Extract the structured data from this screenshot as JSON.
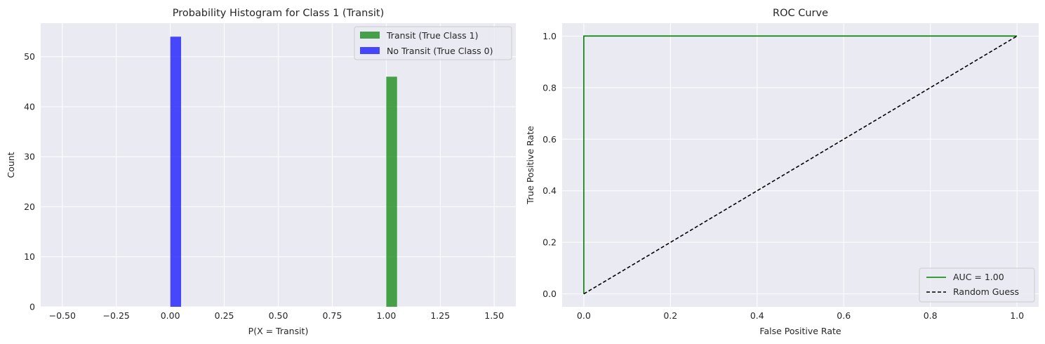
{
  "chart_data": [
    {
      "type": "bar",
      "title": "Probability Histogram for Class 1 (Transit)",
      "xlabel": "P(X = Transit)",
      "ylabel": "Count",
      "xlim": [
        -0.6,
        1.6
      ],
      "ylim": [
        0,
        56.7
      ],
      "xticks": [
        -0.5,
        -0.25,
        0.0,
        0.25,
        0.5,
        0.75,
        1.0,
        1.25,
        1.5
      ],
      "xtick_labels": [
        "−0.50",
        "−0.25",
        "0.00",
        "0.25",
        "0.50",
        "0.75",
        "1.00",
        "1.25",
        "1.50"
      ],
      "yticks": [
        0,
        10,
        20,
        30,
        40,
        50
      ],
      "ytick_labels": [
        "0",
        "10",
        "20",
        "30",
        "40",
        "50"
      ],
      "grid": true,
      "legend_position": "top-right",
      "series": [
        {
          "name": "Transit (True Class 1)",
          "color": "#008000",
          "bins": [
            {
              "x0": 1.0,
              "x1": 1.05,
              "count": 46
            }
          ]
        },
        {
          "name": "No Transit (True Class 0)",
          "color": "#0000ff",
          "bins": [
            {
              "x0": 0.0,
              "x1": 0.05,
              "count": 54
            }
          ]
        }
      ]
    },
    {
      "type": "line",
      "title": "ROC Curve",
      "xlabel": "False Positive Rate",
      "ylabel": "True Positive Rate",
      "xlim": [
        -0.05,
        1.05
      ],
      "ylim": [
        -0.05,
        1.05
      ],
      "xticks": [
        0.0,
        0.2,
        0.4,
        0.6,
        0.8,
        1.0
      ],
      "xtick_labels": [
        "0.0",
        "0.2",
        "0.4",
        "0.6",
        "0.8",
        "1.0"
      ],
      "yticks": [
        0.0,
        0.2,
        0.4,
        0.6,
        0.8,
        1.0
      ],
      "ytick_labels": [
        "0.0",
        "0.2",
        "0.4",
        "0.6",
        "0.8",
        "1.0"
      ],
      "grid": true,
      "legend_position": "bottom-right",
      "series": [
        {
          "name": "AUC = 1.00",
          "color": "#008000",
          "dash": "solid",
          "x": [
            0.0,
            0.0,
            1.0
          ],
          "y": [
            0.0,
            1.0,
            1.0
          ]
        },
        {
          "name": "Random Guess",
          "color": "#000000",
          "dash": "dashed",
          "x": [
            0.0,
            1.0
          ],
          "y": [
            0.0,
            1.0
          ]
        }
      ]
    }
  ]
}
